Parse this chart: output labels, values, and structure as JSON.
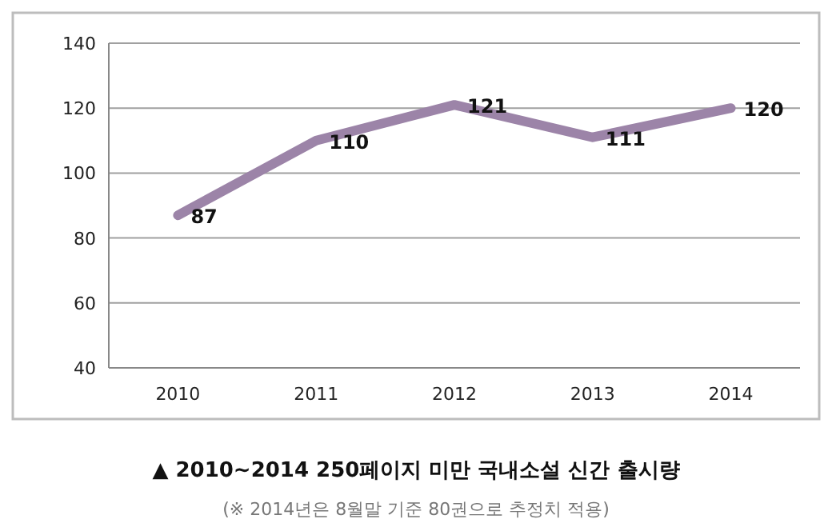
{
  "chart_data": {
    "type": "line",
    "title": "▲ 2010~2014 250페이지 미만 국내소설 신간 출시량",
    "annotations": [
      "(※ 2014년은 8월말 기준 80권으로 추정치 적용)"
    ],
    "categories": [
      "2010",
      "2011",
      "2012",
      "2013",
      "2014"
    ],
    "series": [
      {
        "color": "#9c84a8",
        "values": [
          87,
          110,
          121,
          111,
          120
        ]
      }
    ],
    "ylim": [
      40,
      140
    ],
    "yticks": [
      40,
      60,
      80,
      100,
      120,
      140
    ],
    "grid": "y",
    "data_labels": true,
    "marker": "none",
    "line_style": "solid"
  }
}
